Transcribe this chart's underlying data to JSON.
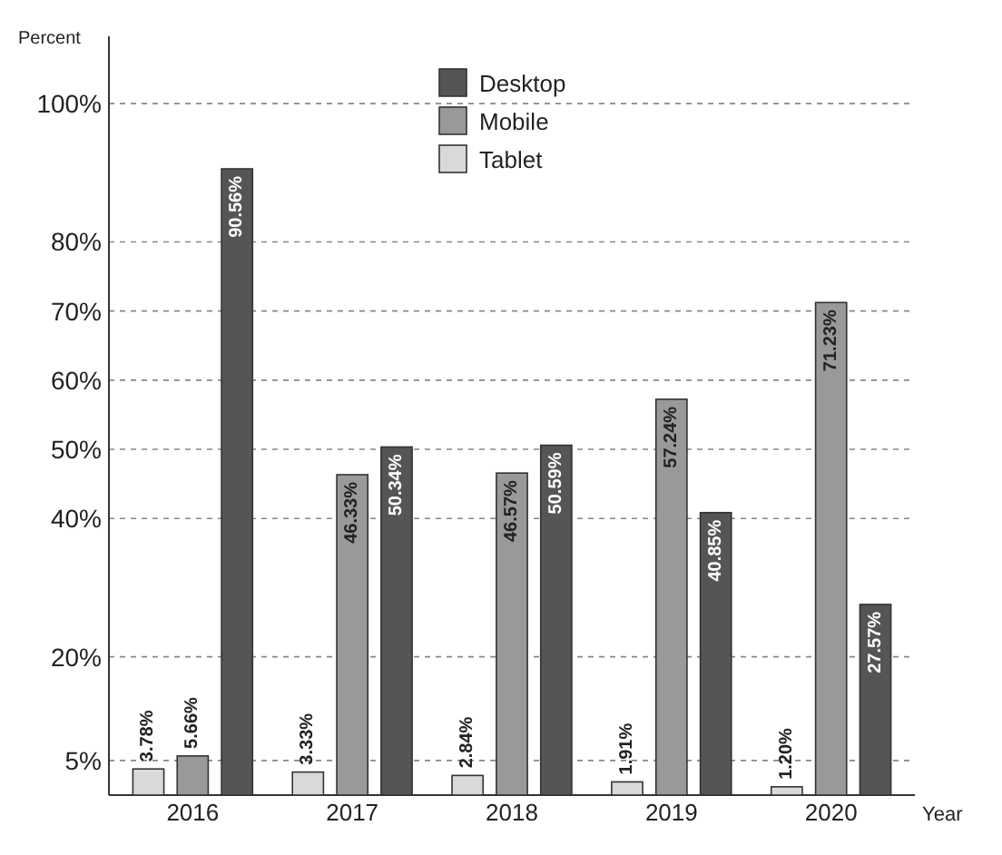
{
  "chart_data": {
    "type": "bar",
    "ylabel": "Percent",
    "xlabel": "Year",
    "categories": [
      "2016",
      "2017",
      "2018",
      "2019",
      "2020"
    ],
    "series": [
      {
        "name": "Tablet",
        "color": "#d9d9d9",
        "values": [
          3.78,
          3.33,
          2.84,
          1.91,
          1.2
        ],
        "value_labels": [
          "3.78%",
          "3.33%",
          "2.84%",
          "1.91%",
          "1.20%"
        ]
      },
      {
        "name": "Mobile",
        "color": "#999999",
        "values": [
          5.66,
          46.33,
          46.57,
          57.24,
          71.23
        ],
        "value_labels": [
          "5.66%",
          "46.33%",
          "46.57%",
          "57.24%",
          "71.23%"
        ]
      },
      {
        "name": "Desktop",
        "color": "#555555",
        "values": [
          90.56,
          50.34,
          50.59,
          40.85,
          27.57
        ],
        "value_labels": [
          "90.56%",
          "50.34%",
          "50.59%",
          "40.85%",
          "27.57%"
        ]
      }
    ],
    "ylim": [
      0,
      105
    ],
    "yticks": [
      {
        "value": 5,
        "label": "5%"
      },
      {
        "value": 20,
        "label": "20%"
      },
      {
        "value": 40,
        "label": "40%"
      },
      {
        "value": 50,
        "label": "50%"
      },
      {
        "value": 60,
        "label": "60%"
      },
      {
        "value": 70,
        "label": "70%"
      },
      {
        "value": 80,
        "label": "80%"
      },
      {
        "value": 100,
        "label": "100%"
      }
    ],
    "grid": "y",
    "legend": "top"
  }
}
